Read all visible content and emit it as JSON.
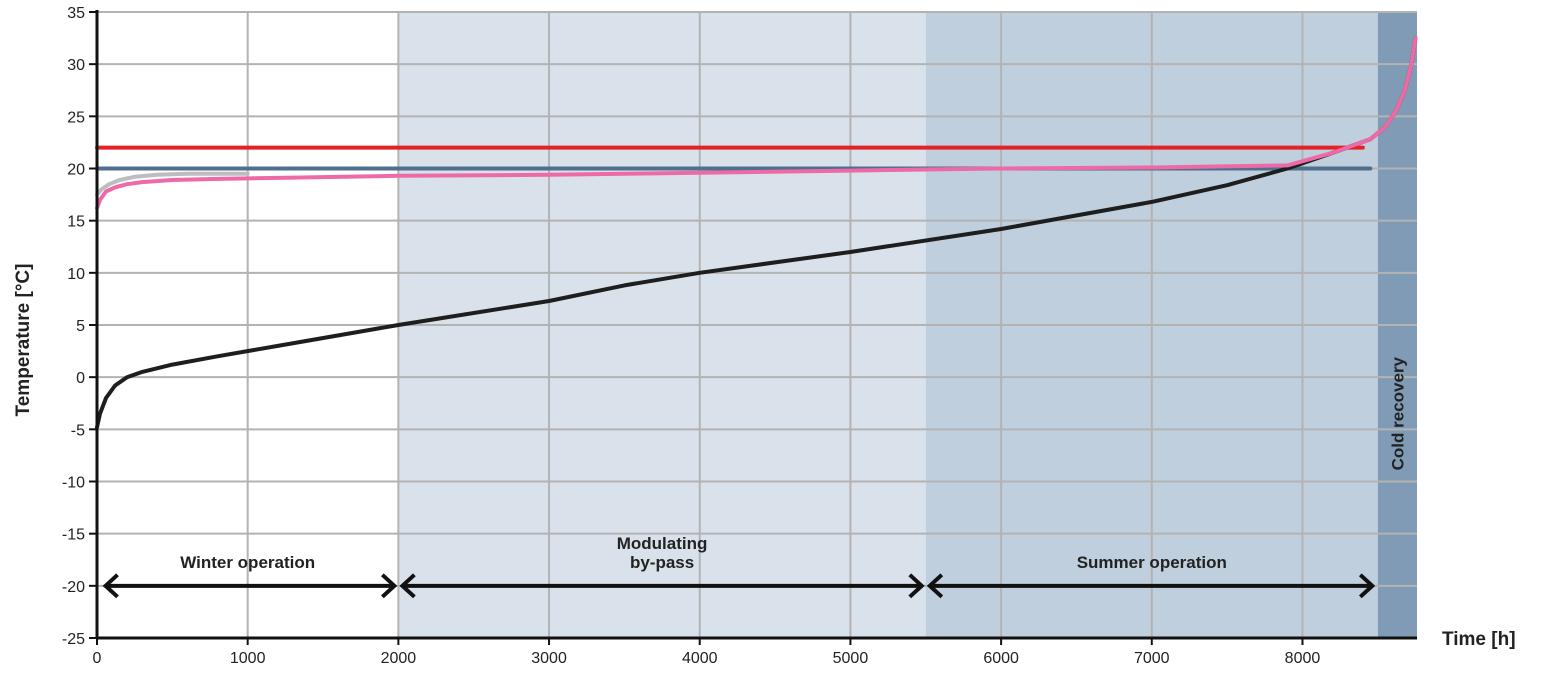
{
  "chart_data": {
    "type": "line",
    "xlabel": "Time [h]",
    "ylabel": "Temperature [°C]",
    "xlim": [
      0,
      8760
    ],
    "ylim": [
      -25,
      35
    ],
    "x_ticks": [
      0,
      1000,
      2000,
      3000,
      4000,
      5000,
      6000,
      7000,
      8000
    ],
    "y_ticks": [
      -25,
      -20,
      -15,
      -10,
      -5,
      0,
      5,
      10,
      15,
      20,
      25,
      30,
      35
    ],
    "grid": true,
    "zones": [
      {
        "label": [
          "Winter operation"
        ],
        "x": [
          0,
          2000
        ],
        "color": "#ffffff"
      },
      {
        "label": [
          "Modulating",
          "by-pass"
        ],
        "x": [
          2000,
          5500
        ],
        "color": "#d9e2ea"
      },
      {
        "label": [
          "Summer operation"
        ],
        "x": [
          5500,
          8500
        ],
        "color": "#c0cfdd"
      },
      {
        "label": [
          "Cold recovery"
        ],
        "x": [
          8500,
          8760
        ],
        "color": "#7f9bb5",
        "vertical": true
      }
    ],
    "arrows": [
      {
        "x": [
          50,
          1980
        ],
        "y": -20
      },
      {
        "x": [
          2020,
          5480
        ],
        "y": -20
      },
      {
        "x": [
          5520,
          8470
        ],
        "y": -20
      }
    ],
    "series": [
      {
        "color": "#e32228",
        "x": [
          0,
          8400
        ],
        "y": [
          22,
          22
        ]
      },
      {
        "color": "#4e6f8d",
        "x": [
          0,
          8450
        ],
        "y": [
          20,
          20
        ]
      },
      {
        "color": "#bdbdbd",
        "x": [
          0,
          30,
          80,
          150,
          250,
          400,
          600,
          1000
        ],
        "y": [
          17.5,
          18,
          18.5,
          18.9,
          19.2,
          19.4,
          19.5,
          19.5
        ]
      },
      {
        "color": "#1e1e1e",
        "x": [
          0,
          20,
          60,
          120,
          200,
          300,
          500,
          800,
          1200,
          2000,
          3000,
          3500,
          4000,
          5000,
          6000,
          7000,
          7500,
          7900,
          8200,
          8450,
          8550,
          8620,
          8680,
          8720,
          8750
        ],
        "y": [
          -4.8,
          -3.5,
          -2,
          -0.8,
          0,
          0.5,
          1.2,
          2,
          3,
          5,
          7.3,
          8.8,
          10,
          12,
          14.2,
          16.8,
          18.4,
          20,
          21.5,
          22.8,
          24,
          25.5,
          27.5,
          29.8,
          32.5
        ]
      },
      {
        "color": "#ee6aa7",
        "x": [
          0,
          20,
          60,
          120,
          200,
          300,
          500,
          800,
          1200,
          2000,
          3000,
          4000,
          5000,
          6000,
          7000,
          7900,
          8200,
          8450,
          8550,
          8620,
          8680,
          8720,
          8750
        ],
        "y": [
          16.2,
          17,
          17.8,
          18.2,
          18.5,
          18.7,
          18.9,
          19,
          19.1,
          19.3,
          19.4,
          19.6,
          19.8,
          20,
          20.1,
          20.3,
          21.5,
          22.8,
          24,
          25.5,
          27.5,
          29.8,
          32.5
        ]
      }
    ]
  }
}
